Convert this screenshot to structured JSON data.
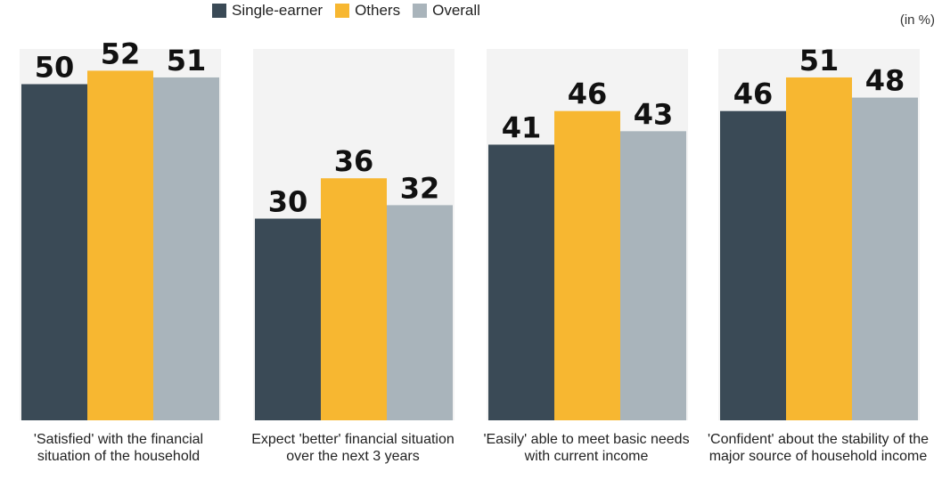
{
  "unit_note": "(in %)",
  "legend": [
    {
      "name": "Single-earner",
      "color": "#3a4a56"
    },
    {
      "name": "Others",
      "color": "#f7b731"
    },
    {
      "name": "Overall",
      "color": "#a9b4bb"
    }
  ],
  "chart_data": {
    "type": "bar",
    "categories": [
      "'Satisfied' with the financial situation of the household",
      "Expect 'better' financial situation over the next 3 years",
      "'Easily' able to meet basic needs with current income",
      "'Confident' about the stability of the major source of household income"
    ],
    "series": [
      {
        "name": "Single-earner",
        "values": [
          50,
          30,
          41,
          46
        ],
        "color": "#3a4a56"
      },
      {
        "name": "Others",
        "values": [
          52,
          36,
          46,
          51
        ],
        "color": "#f7b731"
      },
      {
        "name": "Overall",
        "values": [
          51,
          32,
          43,
          48
        ],
        "color": "#a9b4bb"
      }
    ],
    "title": "",
    "xlabel": "",
    "ylabel": "",
    "ylim": [
      0,
      60
    ],
    "grid": false,
    "legend_position": "top"
  }
}
